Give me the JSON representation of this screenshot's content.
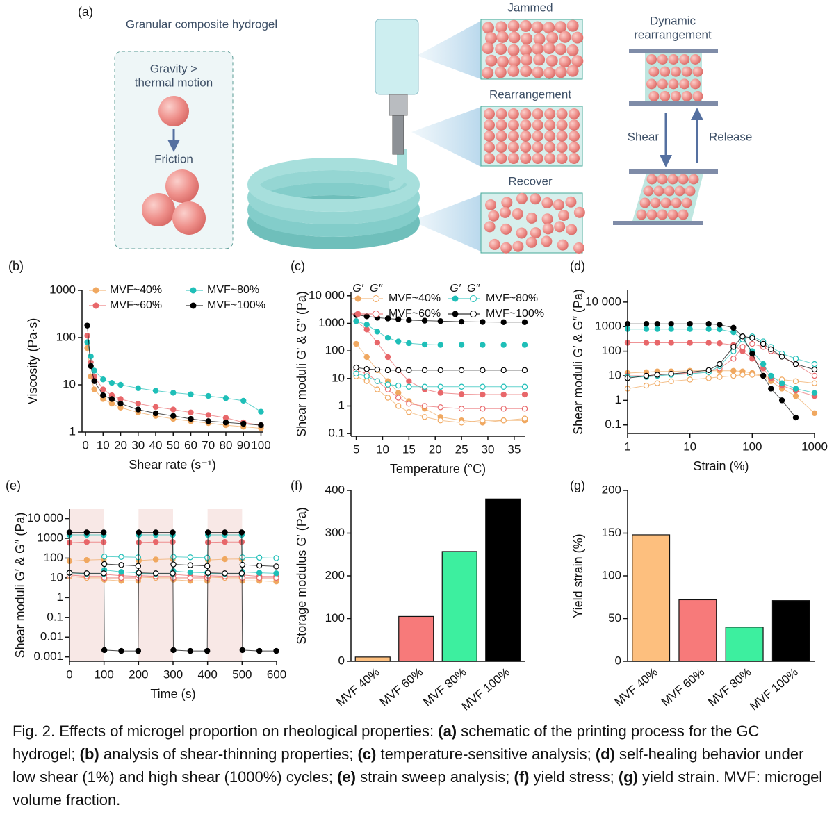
{
  "schematic": {
    "panel": "(a)",
    "title": "Granular composite hydrogel",
    "gravity": [
      "Gravity >",
      "thermal motion"
    ],
    "friction": "Friction",
    "states": [
      "Jammed",
      "Rearrangement",
      "Recover"
    ],
    "dynamic": [
      "Dynamic",
      "rearrangement"
    ],
    "shear": "Shear",
    "release": "Release"
  },
  "chart_data": [
    {
      "type": "line",
      "panel": "(b)",
      "y_label": "Viscosity (Pa·s)",
      "x_label": "Shear rate (s⁻¹)",
      "ylog": true,
      "xlog": false,
      "legend": "upper right",
      "x": [
        1,
        3,
        5,
        10,
        15,
        20,
        30,
        40,
        50,
        60,
        70,
        80,
        90,
        100
      ],
      "xlim": [
        -2,
        101
      ],
      "xticks": [
        0,
        10,
        20,
        30,
        40,
        50,
        60,
        70,
        80,
        90,
        100
      ],
      "ylim": [
        1,
        1000
      ],
      "yticks": [
        1,
        10,
        100,
        1000
      ],
      "series": [
        {
          "name": "MVF~40%",
          "color": "#f0a860",
          "values": [
            60,
            15,
            8,
            5,
            4,
            3.3,
            2.6,
            2.2,
            1.9,
            1.7,
            1.55,
            1.4,
            1.3,
            1.2
          ]
        },
        {
          "name": "MVF~60%",
          "color": "#e8676a",
          "values": [
            110,
            30,
            15,
            8,
            6,
            5,
            4,
            3.4,
            3,
            2.6,
            2.3,
            2,
            1.6,
            1.4
          ]
        },
        {
          "name": "MVF~80%",
          "color": "#1fbfb8",
          "values": [
            80,
            40,
            20,
            13,
            11,
            10,
            8.5,
            7.5,
            6.8,
            6.3,
            5.8,
            5.2,
            4.6,
            2.7
          ]
        },
        {
          "name": "MVF~100%",
          "color": "#000000",
          "values": [
            180,
            25,
            12,
            6,
            5,
            4,
            3,
            2.5,
            2.2,
            1.9,
            1.7,
            1.6,
            1.5,
            1.4
          ]
        }
      ]
    },
    {
      "type": "line",
      "panel": "(c)",
      "y_label": "Shear moduli G′ & G″ (Pa)",
      "x_label": "Temperature (°C)",
      "ylog": true,
      "xlog": false,
      "legend": "upper right",
      "legend_headers": [
        "G′",
        "G″"
      ],
      "x": [
        5,
        7,
        9,
        11,
        13,
        15,
        18,
        21,
        25,
        29,
        33,
        37
      ],
      "xlim": [
        4,
        37
      ],
      "xticks": [
        5,
        10,
        15,
        20,
        25,
        30,
        35
      ],
      "ylim": [
        0.08,
        14000
      ],
      "yticks": [
        0.1,
        1,
        10,
        100,
        1000,
        {
          "value": 10000,
          "label": "10 000"
        }
      ],
      "series": [
        {
          "name": "MVF~40%",
          "color": "#f0a860",
          "values": [
            180,
            60,
            20,
            8,
            3,
            1.5,
            0.8,
            0.4,
            0.3,
            0.25,
            0.3,
            0.3
          ],
          "loss_values": [
            12,
            8,
            4,
            2,
            1,
            0.6,
            0.4,
            0.3,
            0.25,
            0.3,
            0.3,
            0.35
          ]
        },
        {
          "name": "MVF~60%",
          "color": "#e8676a",
          "values": [
            1200,
            600,
            200,
            60,
            20,
            8,
            4,
            3,
            2.7,
            2.6,
            2.6,
            2.6
          ],
          "loss_values": [
            20,
            15,
            8,
            4,
            2,
            1.2,
            1,
            0.9,
            0.8,
            0.8,
            0.8,
            0.8
          ]
        },
        {
          "name": "MVF~80%",
          "color": "#1fbfb8",
          "values": [
            1200,
            900,
            500,
            300,
            220,
            190,
            170,
            165,
            165,
            165,
            165,
            165
          ],
          "loss_values": [
            15,
            12,
            8,
            6,
            5.5,
            5,
            5,
            5,
            5,
            5,
            5,
            5
          ]
        },
        {
          "name": "MVF~100%",
          "color": "#000000",
          "values": [
            2000,
            1800,
            1600,
            1500,
            1400,
            1300,
            1250,
            1200,
            1150,
            1120,
            1100,
            1100
          ],
          "loss_values": [
            25,
            22,
            21,
            20,
            20,
            20,
            20,
            20,
            20,
            20,
            20,
            20
          ]
        }
      ]
    },
    {
      "type": "line",
      "panel": "(d)",
      "y_label": "Shear moduli G′ & G″ (Pa)",
      "x_label": "Strain (%)",
      "ylog": true,
      "xlog": true,
      "x": [
        1,
        2,
        3,
        5,
        10,
        20,
        30,
        50,
        70,
        100,
        150,
        200,
        300,
        500,
        1000
      ],
      "xlim": [
        1,
        1000
      ],
      "xticks": [
        1,
        10,
        100,
        1000
      ],
      "ylim": [
        0.045,
        30000
      ],
      "yticks": [
        0.1,
        1,
        10,
        100,
        1000,
        {
          "value": 10000,
          "label": "10 000"
        }
      ],
      "series": [
        {
          "name": "MVF~40%",
          "color": "#f0a860",
          "values": [
            13,
            14,
            15,
            15,
            16,
            16,
            16,
            16,
            15,
            13,
            10,
            6,
            3,
            1.5,
            0.3
          ],
          "loss_values": [
            3,
            4,
            5,
            6,
            7,
            8,
            9,
            10,
            11,
            11,
            10,
            8,
            7,
            6,
            5
          ]
        },
        {
          "name": "MVF~60%",
          "color": "#e8676a",
          "values": [
            220,
            220,
            220,
            220,
            220,
            220,
            210,
            180,
            100,
            50,
            20,
            8,
            4,
            2.5,
            1.5
          ],
          "loss_values": [
            10,
            10,
            11,
            12,
            13,
            15,
            20,
            50,
            150,
            200,
            150,
            100,
            60,
            30,
            10
          ]
        },
        {
          "name": "MVF~80%",
          "color": "#1fbfb8",
          "values": [
            800,
            800,
            800,
            800,
            800,
            800,
            780,
            600,
            300,
            100,
            30,
            10,
            5,
            3,
            2
          ],
          "loss_values": [
            9,
            9,
            10,
            11,
            12,
            14,
            25,
            100,
            300,
            400,
            250,
            150,
            80,
            50,
            30
          ]
        },
        {
          "name": "MVF~100%",
          "color": "#000000",
          "values": [
            1300,
            1300,
            1300,
            1300,
            1300,
            1300,
            1200,
            900,
            400,
            80,
            10,
            3,
            1,
            0.2,
            null
          ],
          "loss_values": [
            8,
            10,
            11,
            12,
            14,
            17,
            30,
            150,
            400,
            350,
            200,
            120,
            60,
            30,
            18
          ]
        }
      ]
    },
    {
      "type": "line",
      "panel": "(e)",
      "y_label": "Shear moduli G′ & G″ (Pa)",
      "x_label": "Time (s)",
      "ylog": true,
      "xlog": false,
      "shaded_intervals": [
        [
          0,
          100
        ],
        [
          200,
          300
        ],
        [
          400,
          500
        ]
      ],
      "x": [
        0,
        50,
        99,
        101,
        150,
        199,
        201,
        250,
        299,
        301,
        350,
        399,
        401,
        450,
        499,
        501,
        550,
        599
      ],
      "xlim": [
        0,
        600
      ],
      "xticks": [
        0,
        100,
        200,
        300,
        400,
        500,
        600
      ],
      "ylim": [
        0.0006,
        30000
      ],
      "yticks": [
        0.001,
        0.01,
        0.1,
        1,
        10,
        100,
        1000,
        {
          "value": 10000,
          "label": "10 000"
        }
      ],
      "series": [
        {
          "name": "MVF~40%",
          "color": "#f0a860",
          "values": [
            70,
            80,
            85,
            8,
            7,
            7,
            75,
            85,
            90,
            8,
            7,
            7,
            80,
            88,
            90,
            7,
            7,
            6.5
          ],
          "loss_values": [
            12,
            10,
            10,
            9,
            9,
            9,
            11,
            10,
            10,
            9,
            9,
            9,
            11,
            10,
            10,
            9,
            9,
            9
          ]
        },
        {
          "name": "MVF~60%",
          "color": "#e8676a",
          "values": [
            600,
            650,
            650,
            15,
            13,
            12,
            620,
            660,
            660,
            15,
            13,
            12,
            630,
            660,
            660,
            14,
            12,
            12
          ],
          "loss_values": [
            14,
            12,
            12,
            10,
            10,
            10,
            13,
            12,
            12,
            10,
            10,
            10,
            13,
            12,
            12,
            10,
            10,
            10
          ]
        },
        {
          "name": "MVF~80%",
          "color": "#1fbfb8",
          "values": [
            1500,
            1500,
            1500,
            25,
            20,
            18,
            1500,
            1500,
            1500,
            22,
            19,
            18,
            1500,
            1500,
            1500,
            20,
            18,
            17
          ],
          "loss_values": [
            18,
            16,
            16,
            120,
            115,
            110,
            17,
            16,
            16,
            115,
            110,
            105,
            17,
            16,
            16,
            110,
            105,
            100
          ]
        },
        {
          "name": "MVF~100%",
          "color": "#000000",
          "values": [
            2000,
            2000,
            2000,
            0.0022,
            0.002,
            0.002,
            2000,
            2000,
            2000,
            0.0022,
            0.002,
            0.002,
            2000,
            2000,
            2000,
            0.0022,
            0.002,
            0.002
          ],
          "loss_values": [
            18,
            17,
            17,
            50,
            45,
            40,
            18,
            17,
            17,
            48,
            44,
            40,
            18,
            17,
            17,
            46,
            42,
            38
          ]
        }
      ]
    },
    {
      "type": "bar",
      "panel": "(f)",
      "y_label": "Storage modulus G′ (Pa)",
      "categories": [
        "MVF 40%",
        "MVF 60%",
        "MVF 80%",
        "MVF 100%"
      ],
      "values": [
        10,
        105,
        257,
        380
      ],
      "colors": [
        "#fdbf7e",
        "#f77a7a",
        "#3def9f",
        "#000000"
      ],
      "ylim": [
        0,
        400
      ],
      "yticks": [
        0,
        100,
        200,
        300,
        400
      ]
    },
    {
      "type": "bar",
      "panel": "(g)",
      "y_label": "Yield strain (%)",
      "categories": [
        "MVF 40%",
        "MVF 60%",
        "MVF 80%",
        "MVF 100%"
      ],
      "values": [
        148,
        72,
        40,
        71
      ],
      "colors": [
        "#fdbf7e",
        "#f77a7a",
        "#3def9f",
        "#000000"
      ],
      "ylim": [
        0,
        200
      ],
      "yticks": [
        0,
        50,
        100,
        150,
        200
      ]
    }
  ],
  "caption": [
    {
      "text": "Fig. 2. Effects of microgel proportion on rheological properties: ",
      "bold": false
    },
    {
      "text": "(a)",
      "bold": true
    },
    {
      "text": " schematic of the printing process for the GC hydrogel; ",
      "bold": false
    },
    {
      "text": "(b)",
      "bold": true
    },
    {
      "text": " analysis of shear-thinning properties; ",
      "bold": false
    },
    {
      "text": "(c)",
      "bold": true
    },
    {
      "text": " temperature-sensitive analysis; ",
      "bold": false
    },
    {
      "text": "(d)",
      "bold": true
    },
    {
      "text": " self-healing behavior under low shear (1%) and high shear (1000%) cycles; ",
      "bold": false
    },
    {
      "text": "(e)",
      "bold": true
    },
    {
      "text": " strain sweep analysis; ",
      "bold": false
    },
    {
      "text": "(f)",
      "bold": true
    },
    {
      "text": " yield stress; ",
      "bold": false
    },
    {
      "text": "(g)",
      "bold": true
    },
    {
      "text": " yield strain. MVF: microgel volume fraction.",
      "bold": false
    }
  ]
}
